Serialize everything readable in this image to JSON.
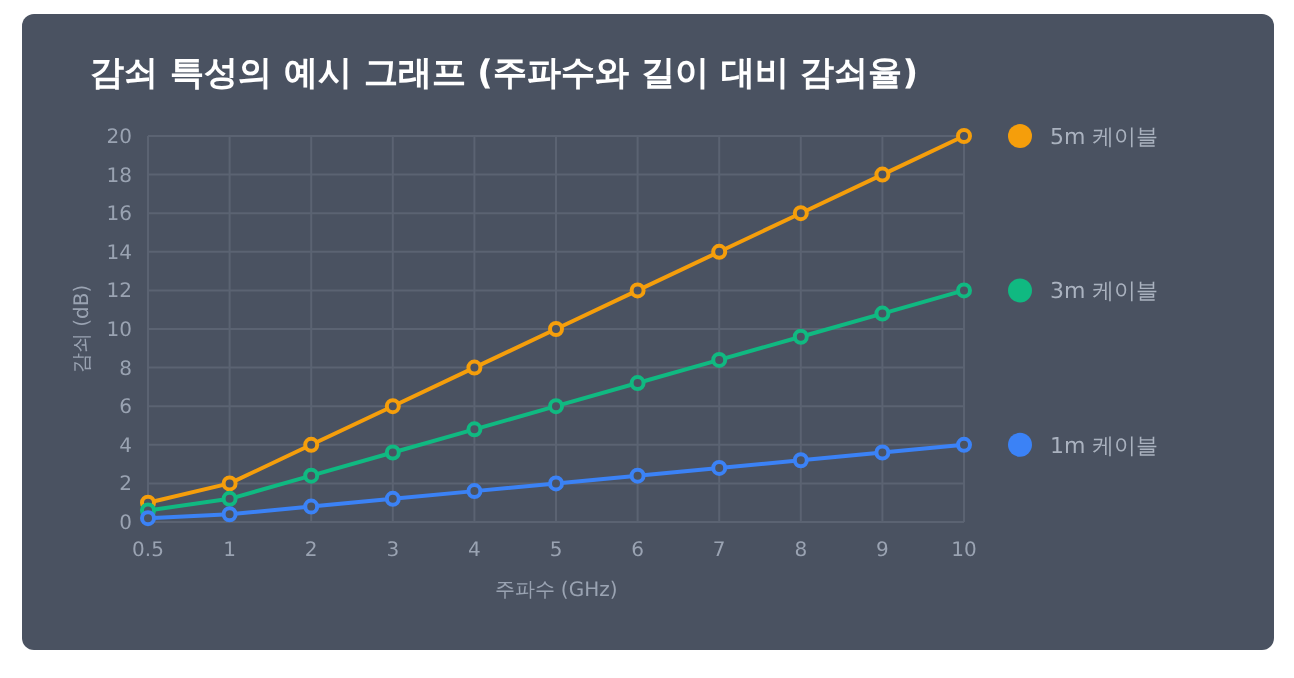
{
  "chart_data": {
    "type": "line",
    "title": "감쇠 특성의 예시 그래프 (주파수와 길이 대비 감쇠율)",
    "xlabel": "주파수 (GHz)",
    "ylabel": "감쇠 (dB)",
    "categories": [
      "0.5",
      "1",
      "2",
      "3",
      "4",
      "5",
      "6",
      "7",
      "8",
      "9",
      "10"
    ],
    "series": [
      {
        "name": "5m 케이블",
        "color": "#f59e0b",
        "values": [
          1,
          2,
          4,
          6,
          8,
          10,
          12,
          14,
          16,
          18,
          20
        ]
      },
      {
        "name": "3m 케이블",
        "color": "#10b981",
        "values": [
          0.6,
          1.2,
          2.4,
          3.6,
          4.8,
          6,
          7.2,
          8.4,
          9.6,
          10.8,
          12
        ]
      },
      {
        "name": "1m 케이블",
        "color": "#3b82f6",
        "values": [
          0.2,
          0.4,
          0.8,
          1.2,
          1.6,
          2,
          2.4,
          2.8,
          3.2,
          3.6,
          4
        ]
      }
    ],
    "ylim": [
      0,
      20
    ],
    "yticks": [
      0,
      2,
      4,
      6,
      8,
      10,
      12,
      14,
      16,
      18,
      20
    ],
    "grid": true,
    "legend": "right",
    "marker": "circle",
    "line_style": "solid"
  }
}
